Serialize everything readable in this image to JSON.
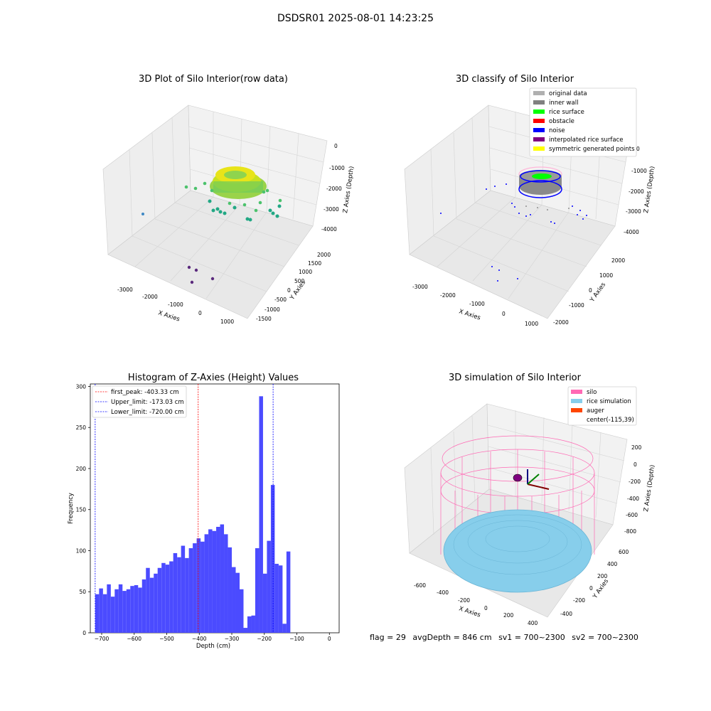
{
  "suptitle": "DSDSR01 2025-08-01 14:23:25",
  "panels": {
    "raw": {
      "title": "3D Plot of Silo Interior(row data)",
      "xlabel": "X Axies",
      "ylabel": "Y Axies",
      "zlabel": "Z Axies (Depth)",
      "xticks": [
        "-3000",
        "-2000",
        "-1000",
        "0",
        "1000"
      ],
      "yticks": [
        "-1500",
        "-1000",
        "-500",
        "0",
        "500",
        "1000",
        "1500",
        "2000"
      ],
      "zticks": [
        "0",
        "-1000",
        "-2000",
        "-3000",
        "-4000"
      ]
    },
    "classify": {
      "title": "3D classify of Silo Interior",
      "xlabel": "X Axies",
      "ylabel": "Y Axies",
      "zlabel": "Z Axies (Depth)",
      "xticks": [
        "-3000",
        "-2000",
        "-1000",
        "0",
        "1000"
      ],
      "yticks": [
        "-2000",
        "-1000",
        "0",
        "1000",
        "2000"
      ],
      "zticks": [
        "0",
        "-1000",
        "-2000",
        "-3000",
        "-4000"
      ],
      "legend": [
        {
          "label": "original data",
          "color": "#b0b0b0"
        },
        {
          "label": "inner wall",
          "color": "#808080"
        },
        {
          "label": "rice surface",
          "color": "#00ff00"
        },
        {
          "label": "obstacle",
          "color": "#ff0000"
        },
        {
          "label": "noise",
          "color": "#0000ff"
        },
        {
          "label": "interpolated rice surface",
          "color": "#800080"
        },
        {
          "label": "symmetric generated points",
          "color": "#ffff00"
        }
      ]
    },
    "simulation": {
      "title": "3D simulation of Silo Interior",
      "xlabel": "X Axies",
      "ylabel": "Y Axies",
      "zlabel": "Z Axies (Depth)",
      "xticks": [
        "-600",
        "-400",
        "-200",
        "0",
        "200",
        "400"
      ],
      "yticks": [
        "-400",
        "-200",
        "0",
        "200",
        "400",
        "600"
      ],
      "zticks": [
        "200",
        "0",
        "-200",
        "-400",
        "-600",
        "-800"
      ],
      "legend": [
        {
          "label": "silo",
          "color": "#ff69b4"
        },
        {
          "label": "rice simulation",
          "color": "#87ceeb"
        },
        {
          "label": "auger",
          "color": "#ff4500"
        },
        {
          "label": "center(-115,39)",
          "color": ""
        }
      ]
    }
  },
  "chart_data": {
    "type": "bar",
    "title": "Histogram of Z-Axies (Height) Values",
    "xlabel": "Depth (cm)",
    "ylabel": "Frequency",
    "xlim": [
      -735,
      30
    ],
    "ylim": [
      0,
      303
    ],
    "xticks": [
      -700,
      -600,
      -500,
      -400,
      -300,
      -200,
      -100,
      0
    ],
    "yticks": [
      0,
      50,
      100,
      150,
      200,
      250,
      300
    ],
    "bin_start": -720,
    "bin_width": 12,
    "values": [
      47,
      54,
      47,
      59,
      44,
      53,
      59,
      51,
      53,
      57,
      58,
      55,
      65,
      79,
      67,
      72,
      79,
      85,
      83,
      87,
      97,
      92,
      106,
      91,
      103,
      109,
      115,
      111,
      120,
      126,
      124,
      129,
      132,
      120,
      104,
      80,
      73,
      53,
      6,
      20,
      21,
      103,
      288,
      72,
      112,
      180,
      84,
      82,
      11,
      99
    ],
    "vlines": [
      {
        "label": "first_peak: -403.33 cm",
        "x": -403.33,
        "color": "#ff0000"
      },
      {
        "label": "Upper_limit: -173.03 cm",
        "x": -173.03,
        "color": "#0000ff"
      },
      {
        "label": "Lower_limit: -720.00 cm",
        "x": -720.0,
        "color": "#0000ff"
      }
    ],
    "bar_color": "#4b4bff"
  },
  "status": {
    "flag": "flag = 29",
    "avg_depth": "avgDepth = 846 cm",
    "sv1": "sv1 = 700~2300",
    "sv2": "sv2 = 700~2300"
  }
}
